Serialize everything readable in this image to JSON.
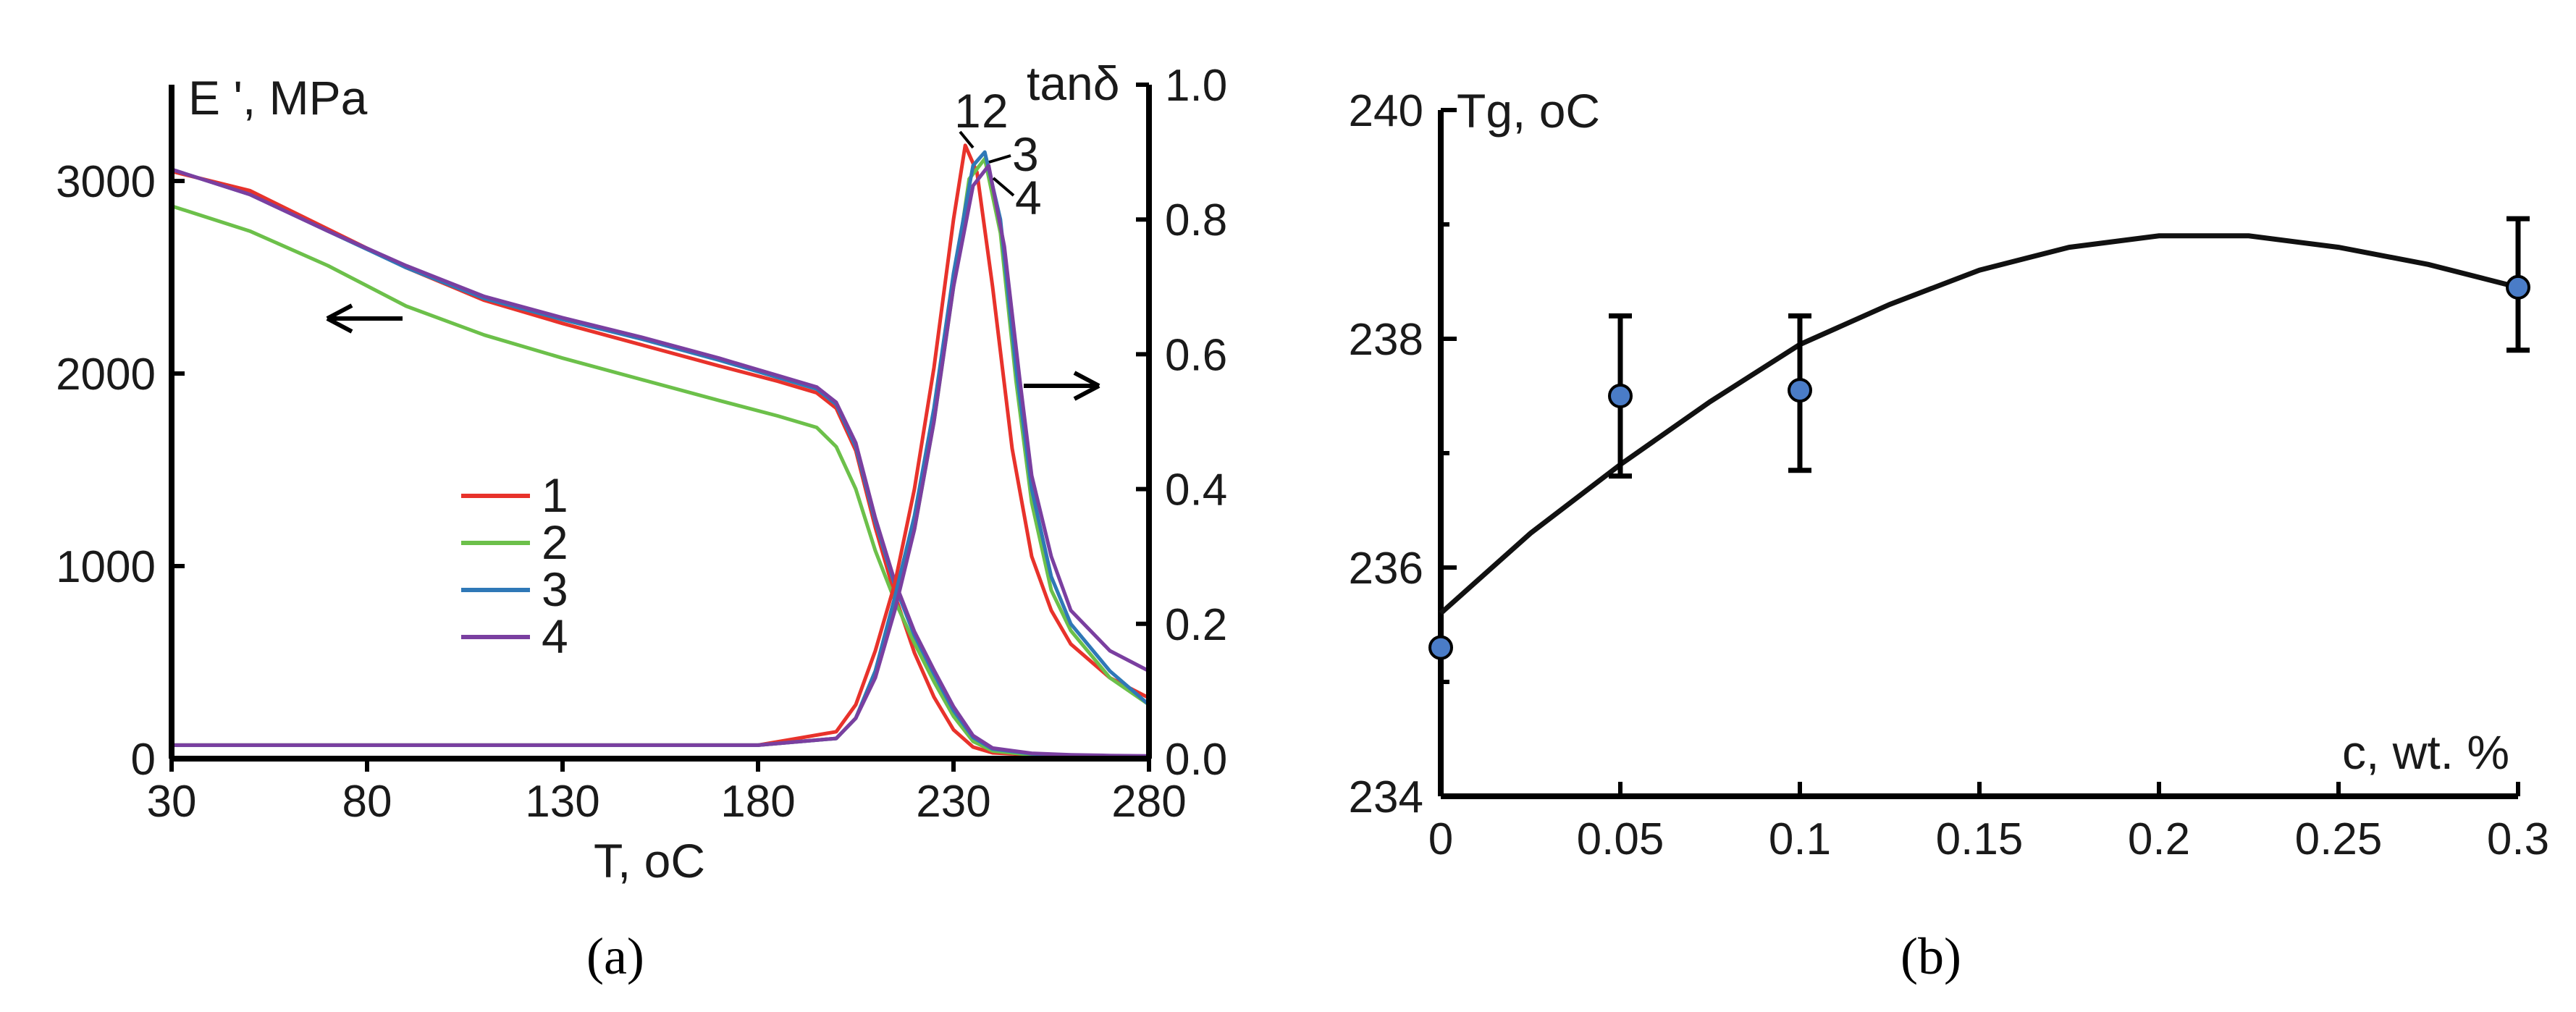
{
  "panel_a": {
    "caption": "(a)",
    "y_left_label": "E ', MPa",
    "y_right_label": "tanδ",
    "x_label": "T, oC",
    "peak_labels": [
      "1",
      "2",
      "3",
      "4"
    ],
    "arrow_left": "←",
    "arrow_right": "→"
  },
  "panel_b": {
    "caption": "(b)",
    "y_label": "Tg, oC",
    "x_label": "c, wt. %"
  },
  "chart_data": [
    {
      "type": "line",
      "title": "",
      "xlabel": "T, oC",
      "ylabel": "E ', MPa",
      "y2label": "tanδ",
      "xlim": [
        30,
        280
      ],
      "ylim": [
        0,
        3500
      ],
      "y2lim": [
        0.0,
        1.0
      ],
      "xticks": [
        30,
        80,
        130,
        180,
        230,
        280
      ],
      "yticks": [
        0,
        1000,
        2000,
        3000
      ],
      "y2ticks": [
        "0.0",
        "0.2",
        "0.4",
        "0.6",
        "0.8",
        "1.0"
      ],
      "legend": {
        "position": "center",
        "entries": [
          "1",
          "2",
          "3",
          "4"
        ]
      },
      "colors": {
        "1": "#e8322b",
        "2": "#6cc04a",
        "3": "#2f78b7",
        "4": "#7a3fa0"
      },
      "series_storage_modulus": [
        {
          "name": "1",
          "x": [
            30,
            50,
            70,
            90,
            110,
            130,
            150,
            170,
            185,
            195,
            200,
            205,
            210,
            215,
            220,
            225,
            230,
            235,
            240,
            250,
            260,
            270,
            280
          ],
          "values": [
            3050,
            2950,
            2750,
            2550,
            2380,
            2260,
            2150,
            2040,
            1960,
            1900,
            1820,
            1600,
            1200,
            850,
            550,
            320,
            150,
            60,
            30,
            20,
            15,
            12,
            10
          ]
        },
        {
          "name": "2",
          "x": [
            30,
            50,
            70,
            90,
            110,
            130,
            150,
            170,
            185,
            195,
            200,
            205,
            210,
            215,
            220,
            225,
            230,
            235,
            240,
            250,
            260,
            270,
            280
          ],
          "values": [
            2870,
            2740,
            2560,
            2350,
            2200,
            2080,
            1970,
            1860,
            1780,
            1720,
            1620,
            1400,
            1080,
            820,
            600,
            400,
            220,
            90,
            40,
            20,
            15,
            12,
            10
          ]
        },
        {
          "name": "3",
          "x": [
            30,
            50,
            70,
            90,
            110,
            130,
            150,
            170,
            185,
            195,
            200,
            205,
            210,
            215,
            220,
            225,
            230,
            235,
            240,
            250,
            260,
            270,
            280
          ],
          "values": [
            3060,
            2930,
            2740,
            2550,
            2390,
            2280,
            2180,
            2070,
            1980,
            1920,
            1840,
            1620,
            1230,
            900,
            640,
            440,
            250,
            110,
            50,
            25,
            18,
            14,
            12
          ]
        },
        {
          "name": "4",
          "x": [
            30,
            50,
            70,
            90,
            110,
            130,
            150,
            170,
            185,
            195,
            200,
            205,
            210,
            215,
            220,
            225,
            230,
            235,
            240,
            250,
            260,
            270,
            280
          ],
          "values": [
            3060,
            2930,
            2740,
            2560,
            2400,
            2290,
            2190,
            2080,
            1990,
            1930,
            1850,
            1640,
            1250,
            920,
            660,
            460,
            270,
            120,
            55,
            28,
            20,
            16,
            14
          ]
        }
      ],
      "series_tan_delta": [
        {
          "name": "1",
          "x": [
            30,
            100,
            180,
            200,
            205,
            210,
            215,
            220,
            225,
            230,
            233,
            236,
            240,
            245,
            250,
            255,
            260,
            270,
            280
          ],
          "values": [
            0.02,
            0.02,
            0.02,
            0.04,
            0.08,
            0.16,
            0.26,
            0.4,
            0.58,
            0.8,
            0.91,
            0.87,
            0.7,
            0.46,
            0.3,
            0.22,
            0.17,
            0.12,
            0.09
          ]
        },
        {
          "name": "2",
          "x": [
            30,
            100,
            180,
            200,
            205,
            210,
            215,
            220,
            225,
            230,
            234,
            238,
            242,
            246,
            250,
            255,
            260,
            270,
            280
          ],
          "values": [
            0.02,
            0.02,
            0.02,
            0.03,
            0.06,
            0.13,
            0.23,
            0.34,
            0.5,
            0.7,
            0.86,
            0.89,
            0.78,
            0.56,
            0.38,
            0.25,
            0.19,
            0.12,
            0.08
          ]
        },
        {
          "name": "3",
          "x": [
            30,
            100,
            180,
            200,
            205,
            210,
            215,
            220,
            225,
            230,
            235,
            238,
            242,
            246,
            250,
            255,
            260,
            270,
            280
          ],
          "values": [
            0.02,
            0.02,
            0.02,
            0.03,
            0.06,
            0.13,
            0.24,
            0.36,
            0.52,
            0.72,
            0.88,
            0.9,
            0.8,
            0.58,
            0.4,
            0.27,
            0.2,
            0.13,
            0.08
          ]
        },
        {
          "name": "4",
          "x": [
            30,
            100,
            180,
            200,
            205,
            210,
            215,
            220,
            225,
            230,
            235,
            239,
            243,
            247,
            250,
            255,
            260,
            270,
            280
          ],
          "values": [
            0.02,
            0.02,
            0.02,
            0.03,
            0.06,
            0.12,
            0.22,
            0.34,
            0.5,
            0.7,
            0.85,
            0.88,
            0.76,
            0.56,
            0.42,
            0.3,
            0.22,
            0.16,
            0.13
          ]
        }
      ]
    },
    {
      "type": "scatter",
      "title": "",
      "xlabel": "c, wt. %",
      "ylabel": "Tg, oC",
      "xlim": [
        0,
        0.3
      ],
      "ylim": [
        234,
        240
      ],
      "xticks": [
        "0",
        "0.05",
        "0.1",
        "0.15",
        "0.2",
        "0.25",
        "0.3"
      ],
      "yticks": [
        "234",
        "236",
        "238",
        "240"
      ],
      "point_color": "#4a7cc7",
      "points": [
        {
          "x": 0,
          "y": 235.3,
          "err": null
        },
        {
          "x": 0.05,
          "y": 237.5,
          "err_low": 236.8,
          "err_high": 238.2
        },
        {
          "x": 0.1,
          "y": 237.55,
          "err_low": 236.85,
          "err_high": 238.2
        },
        {
          "x": 0.3,
          "y": 238.45,
          "err_low": 237.9,
          "err_high": 239.05
        }
      ],
      "fit_curve": {
        "x": [
          0,
          0.025,
          0.05,
          0.075,
          0.1,
          0.125,
          0.15,
          0.175,
          0.2,
          0.225,
          0.25,
          0.275,
          0.3
        ],
        "values": [
          235.6,
          236.3,
          236.9,
          237.45,
          237.95,
          238.3,
          238.6,
          238.8,
          238.9,
          238.9,
          238.8,
          238.65,
          238.45
        ]
      }
    }
  ]
}
